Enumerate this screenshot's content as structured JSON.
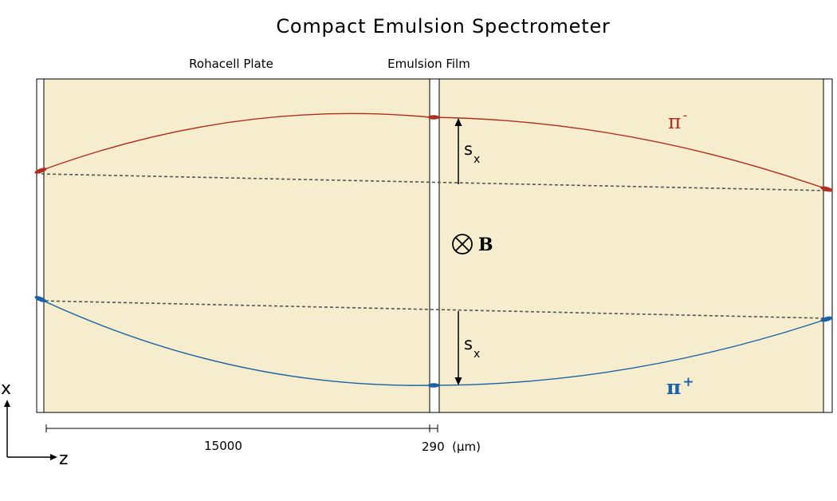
{
  "title": "Compact Emulsion Spectrometer",
  "labels": {
    "rohacell": "Rohacell Plate",
    "emulsion": "Emulsion Film",
    "field_symbol": "B",
    "sagitta_top": "s",
    "sagitta_top_sub": "x",
    "sagitta_bottom": "s",
    "sagitta_bottom_sub": "x",
    "pi_minus": "π",
    "pi_minus_sup": "-",
    "pi_plus": "π",
    "pi_plus_sup": "+",
    "axis_x": "x",
    "axis_z": "z",
    "dim_rohacell": "15000",
    "dim_film": "290  (μm)"
  },
  "colors": {
    "plate_fill": "#f5edcd",
    "pi_minus": "#b0301f",
    "pi_plus": "#1a62a6",
    "outline": "#000000",
    "dashed": "#555555"
  }
}
